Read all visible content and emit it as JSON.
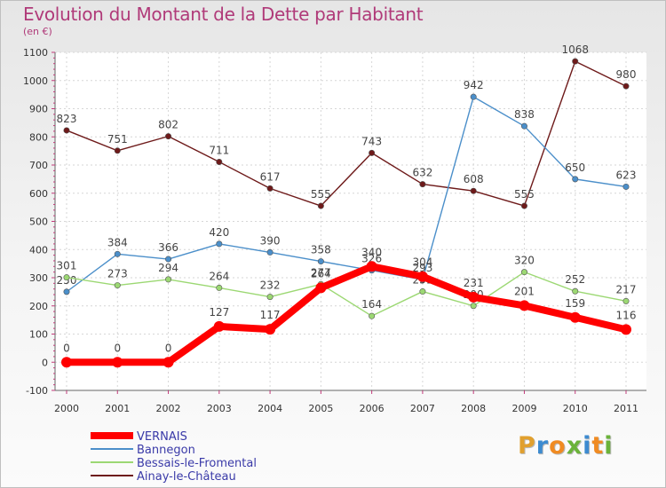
{
  "title": "Evolution du Montant de la Dette par Habitant",
  "subtitle": "(en €)",
  "logo": {
    "text": "Proxiti",
    "letters": [
      "P",
      "r",
      "o",
      "x",
      "i",
      "t",
      "i"
    ],
    "colors": [
      "#e1a02e",
      "#3d8bd0",
      "#f08b22",
      "#6bb33a",
      "#3d8bd0",
      "#f08b22",
      "#6bb33a"
    ]
  },
  "chart_data": {
    "type": "line",
    "x": [
      "2000",
      "2001",
      "2002",
      "2003",
      "2004",
      "2005",
      "2006",
      "2007",
      "2008",
      "2009",
      "2010",
      "2011"
    ],
    "ylim": [
      -100,
      1100
    ],
    "yticks": [
      -100,
      0,
      100,
      200,
      300,
      400,
      500,
      600,
      700,
      800,
      900,
      1000,
      1100
    ],
    "legend_position": "bottom-left",
    "series": [
      {
        "name": "Ainay-le-Château",
        "color": "#6e1a1a",
        "values": [
          823,
          751,
          802,
          711,
          617,
          555,
          743,
          632,
          608,
          555,
          1068,
          980
        ],
        "labels": [
          "823",
          "751",
          "802",
          "711",
          "617",
          "555",
          "743",
          "632",
          "608",
          "555",
          "1068",
          "980"
        ]
      },
      {
        "name": "Bannegon",
        "color": "#4b8fca",
        "values": [
          250,
          384,
          366,
          420,
          390,
          358,
          326,
          293,
          942,
          838,
          650,
          623
        ],
        "labels": [
          "250",
          "384",
          "366",
          "420",
          "390",
          "358",
          "326",
          "293",
          "942",
          "838",
          "650",
          "623"
        ]
      },
      {
        "name": "Bessais-le-Fromental",
        "color": "#9cd873",
        "values": [
          301,
          273,
          294,
          264,
          232,
          277,
          164,
          251,
          200,
          320,
          252,
          217
        ],
        "labels": [
          "301",
          "273",
          "294",
          "264",
          "232",
          "277",
          "164",
          "251",
          "200",
          "320",
          "252",
          "217"
        ]
      },
      {
        "name": "VERNAIS",
        "color": "#ff0000",
        "values": [
          0,
          0,
          0,
          127,
          117,
          264,
          340,
          304,
          231,
          201,
          159,
          116
        ],
        "labels": [
          "0",
          "0",
          "0",
          "127",
          "117",
          "264",
          "340",
          "304",
          "231",
          "201",
          "159",
          "116"
        ]
      }
    ]
  }
}
